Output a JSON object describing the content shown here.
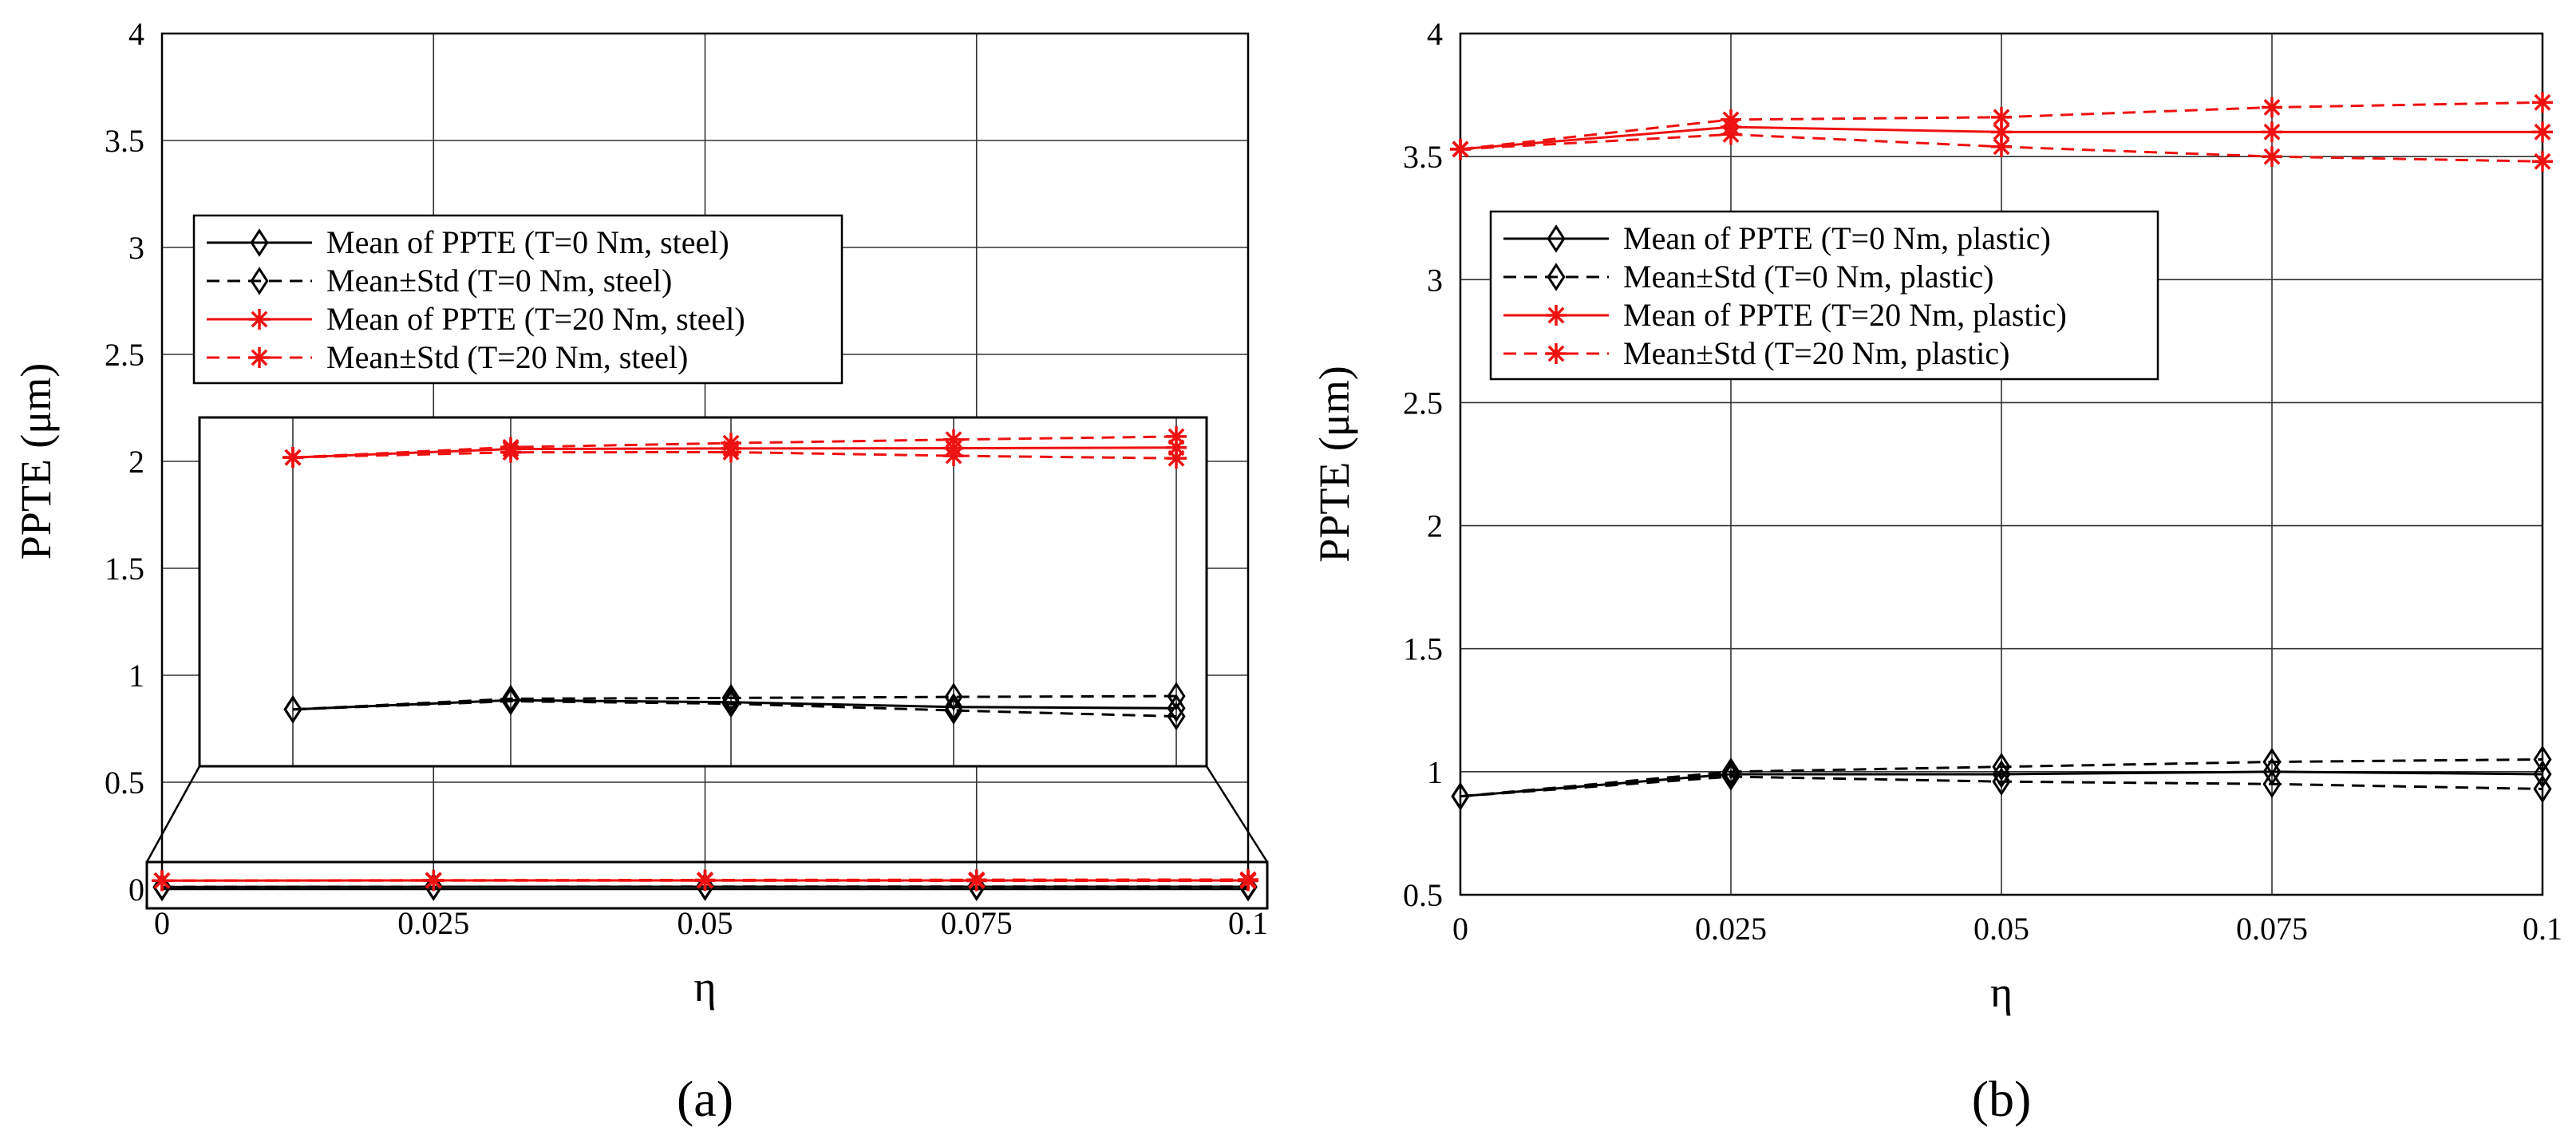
{
  "chart_data": [
    {
      "type": "line",
      "panel_label": "(a)",
      "xlabel": "η",
      "ylabel": "PPTE (μm)",
      "xlim": [
        0,
        0.1
      ],
      "ylim": [
        0,
        4
      ],
      "x_ticks": [
        "0",
        "0.025",
        "0.05",
        "0.075",
        "0.1"
      ],
      "y_ticks": [
        "0",
        "0.5",
        "1",
        "1.5",
        "2",
        "2.5",
        "3",
        "3.5",
        "4"
      ],
      "grid": true,
      "legend_position": "upper-left",
      "x": [
        0,
        0.025,
        0.05,
        0.075,
        0.1
      ],
      "series": [
        {
          "name": "Mean of PPTE (T=0 Nm, steel)",
          "values": [
            0.01,
            0.011,
            0.011,
            0.011,
            0.011
          ],
          "color": "#000000",
          "dash": "solid",
          "marker": "diamond"
        },
        {
          "name": "Mean±Std (T=0 Nm, steel)",
          "values": [
            0.01,
            0.011,
            0.012,
            0.012,
            0.012
          ],
          "lower": [
            0.01,
            0.011,
            0.011,
            0.01,
            0.009
          ],
          "color": "#000000",
          "dash": "dashed",
          "marker": "diamond"
        },
        {
          "name": "Mean of PPTE (T=20 Nm, steel)",
          "values": [
            0.04,
            0.041,
            0.041,
            0.041,
            0.041
          ],
          "color": "#ee1111",
          "dash": "solid",
          "marker": "star"
        },
        {
          "name": "Mean±Std (T=20 Nm, steel)",
          "values": [
            0.04,
            0.042,
            0.043,
            0.044,
            0.045
          ],
          "lower": [
            0.04,
            0.04,
            0.04,
            0.039,
            0.039
          ],
          "color": "#ee1111",
          "dash": "dashed",
          "marker": "star"
        }
      ],
      "inset": {
        "description_level": "zoom",
        "black_mean": [
          0.777,
          0.822,
          0.812,
          0.789,
          0.783
        ],
        "black_upper": [
          0.777,
          0.829,
          0.833,
          0.838,
          0.842
        ],
        "black_lower": [
          0.777,
          0.817,
          0.805,
          0.772,
          0.743
        ],
        "red_mean": [
          2.005,
          2.046,
          2.049,
          2.05,
          2.053
        ],
        "red_upper": [
          2.005,
          2.055,
          2.075,
          2.092,
          2.107
        ],
        "red_lower": [
          2.005,
          2.03,
          2.031,
          2.013,
          2.001
        ]
      }
    },
    {
      "type": "line",
      "panel_label": "(b)",
      "xlabel": "η",
      "ylabel": "PPTE (μm)",
      "xlim": [
        0,
        0.1
      ],
      "ylim": [
        0.5,
        4
      ],
      "x_ticks": [
        "0",
        "0.025",
        "0.05",
        "0.075",
        "0.1"
      ],
      "y_ticks": [
        "0.5",
        "1",
        "1.5",
        "2",
        "2.5",
        "3",
        "3.5",
        "4"
      ],
      "grid": true,
      "legend_position": "upper-left",
      "x": [
        0,
        0.025,
        0.05,
        0.075,
        0.1
      ],
      "series": [
        {
          "name": "Mean of PPTE (T=0 Nm, plastic)",
          "values": [
            0.9,
            0.99,
            0.99,
            1.0,
            0.99
          ],
          "color": "#000000",
          "dash": "solid",
          "marker": "diamond"
        },
        {
          "name": "Mean±Std (T=0 Nm, plastic)",
          "values": [
            0.9,
            1.0,
            1.02,
            1.04,
            1.05
          ],
          "lower": [
            0.9,
            0.98,
            0.96,
            0.95,
            0.93
          ],
          "color": "#000000",
          "dash": "dashed",
          "marker": "diamond"
        },
        {
          "name": "Mean of PPTE (T=20 Nm, plastic)",
          "values": [
            3.53,
            3.62,
            3.6,
            3.6,
            3.6
          ],
          "color": "#ee1111",
          "dash": "solid",
          "marker": "star"
        },
        {
          "name": "Mean±Std (T=20 Nm, plastic)",
          "values": [
            3.53,
            3.65,
            3.66,
            3.7,
            3.72
          ],
          "lower": [
            3.53,
            3.59,
            3.54,
            3.5,
            3.48
          ],
          "color": "#ee1111",
          "dash": "dashed",
          "marker": "star"
        }
      ]
    }
  ]
}
